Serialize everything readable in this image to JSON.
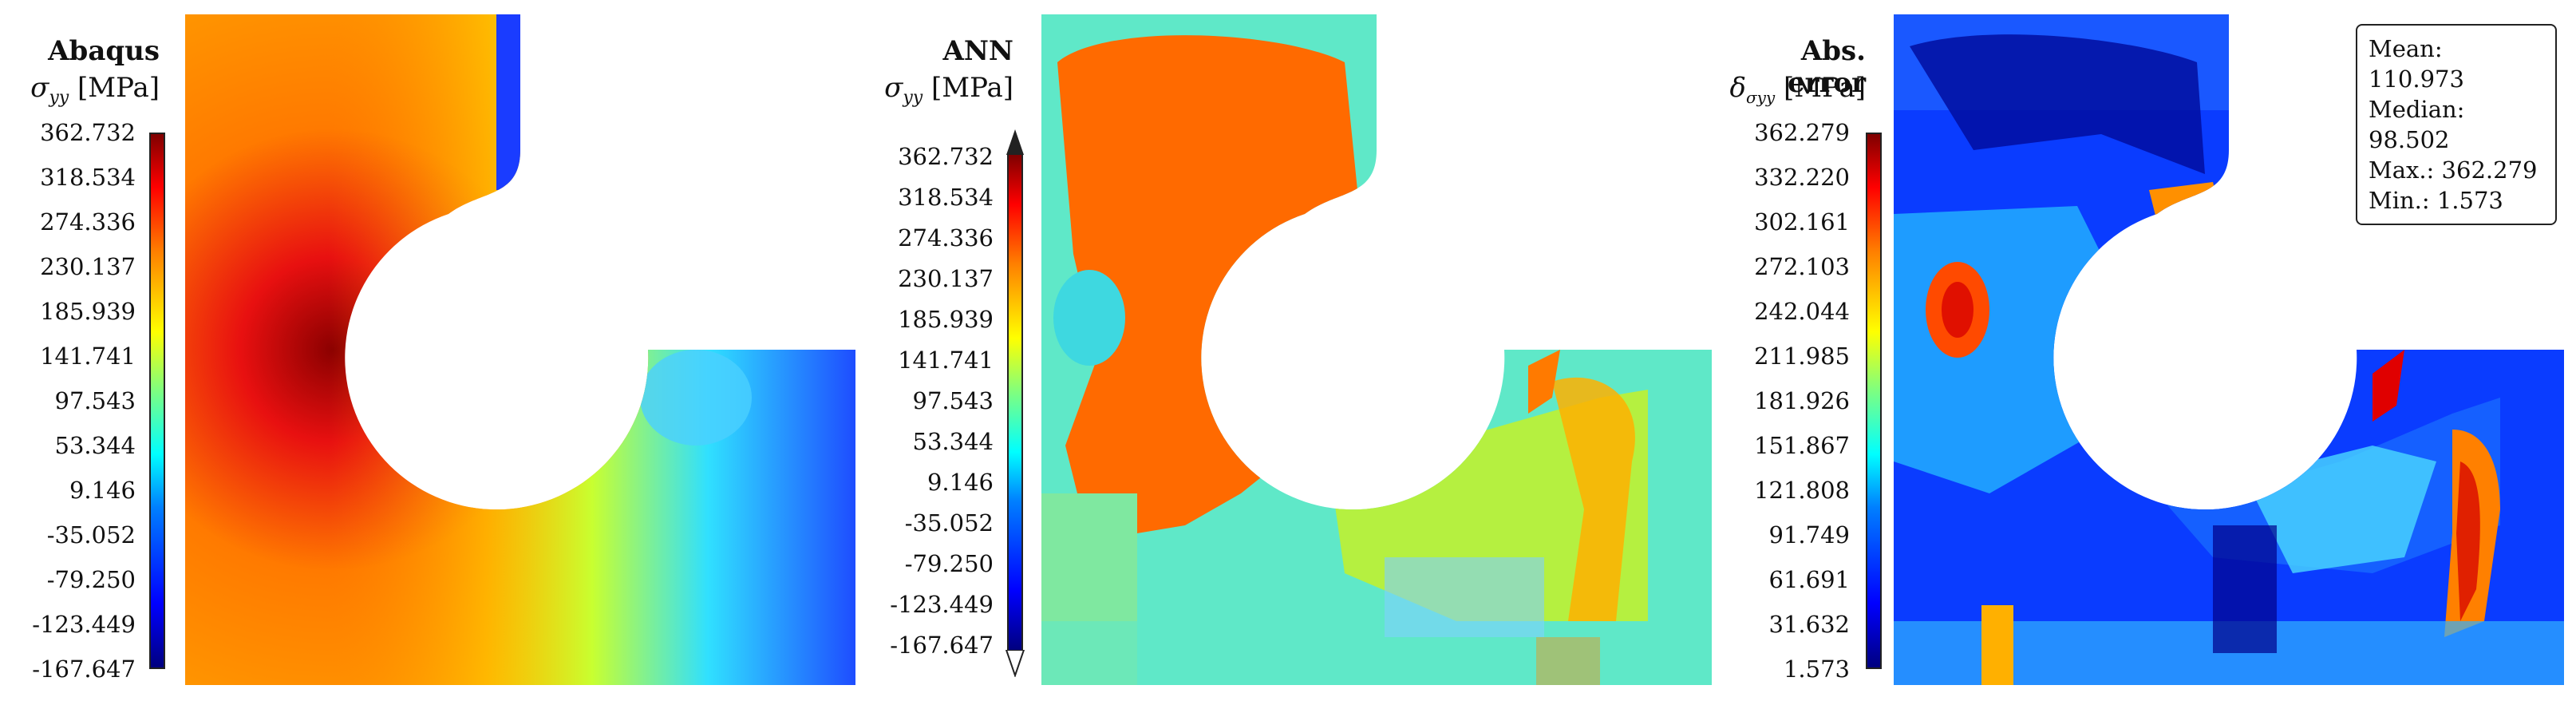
{
  "panels": [
    {
      "title": "Abaqus",
      "subtitle_symbol": "σ",
      "subtitle_sub": "yy",
      "subtitle_unit": "[MPa]",
      "ticks": [
        "362.732",
        "318.534",
        "274.336",
        "230.137",
        "185.939",
        "141.741",
        "97.543",
        "53.344",
        "9.146",
        "-35.052",
        "-79.250",
        "-123.449",
        "-167.647"
      ]
    },
    {
      "title": "ANN",
      "subtitle_symbol": "σ",
      "subtitle_sub": "yy",
      "subtitle_unit": "[MPa]",
      "ticks": [
        "362.732",
        "318.534",
        "274.336",
        "230.137",
        "185.939",
        "141.741",
        "97.543",
        "53.344",
        "9.146",
        "-35.052",
        "-79.250",
        "-123.449",
        "-167.647"
      ]
    },
    {
      "title": "Abs. error",
      "subtitle_symbol": "δ",
      "subtitle_sub": "σyy",
      "subtitle_unit": "[MPa]",
      "ticks": [
        "362.279",
        "332.220",
        "302.161",
        "272.103",
        "242.044",
        "211.985",
        "181.926",
        "151.867",
        "121.808",
        "91.749",
        "61.691",
        "31.632",
        "1.573"
      ]
    }
  ],
  "stats": {
    "mean": "Mean: 110.973",
    "median": "Median: 98.502",
    "max": "Max.: 362.279",
    "min": "Min.: 1.573"
  },
  "colormap": "jet"
}
